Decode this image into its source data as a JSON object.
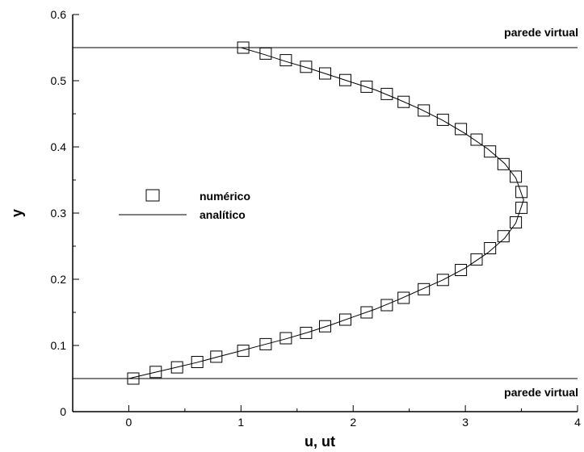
{
  "chart_data": {
    "type": "scatter",
    "xlabel": "u, ut",
    "ylabel": "y",
    "xlim": [
      -0.5,
      4
    ],
    "ylim": [
      0,
      0.6
    ],
    "xticks": [
      0,
      1,
      2,
      3,
      4
    ],
    "xtick_labels": [
      "0",
      "1",
      "2",
      "3",
      "4"
    ],
    "yticks": [
      0,
      0.1,
      0.2,
      0.3,
      0.4,
      0.5,
      0.6
    ],
    "ytick_labels": [
      "0",
      "0.1",
      "0.2",
      "0.3",
      "0.4",
      "0.5",
      "0.6"
    ],
    "grid": false,
    "legend_position": "middle-left",
    "series": [
      {
        "name": "numérico",
        "marker": "square",
        "points": [
          [
            0.04,
            0.05
          ],
          [
            0.24,
            0.06
          ],
          [
            0.43,
            0.067
          ],
          [
            0.61,
            0.075
          ],
          [
            0.78,
            0.083
          ],
          [
            1.02,
            0.092
          ],
          [
            1.22,
            0.102
          ],
          [
            1.4,
            0.111
          ],
          [
            1.58,
            0.119
          ],
          [
            1.75,
            0.129
          ],
          [
            1.93,
            0.139
          ],
          [
            2.12,
            0.15
          ],
          [
            2.3,
            0.161
          ],
          [
            2.45,
            0.172
          ],
          [
            2.63,
            0.185
          ],
          [
            2.8,
            0.199
          ],
          [
            2.96,
            0.214
          ],
          [
            3.1,
            0.23
          ],
          [
            3.22,
            0.247
          ],
          [
            3.34,
            0.265
          ],
          [
            3.45,
            0.286
          ],
          [
            3.5,
            0.308
          ],
          [
            3.5,
            0.332
          ],
          [
            3.45,
            0.355
          ],
          [
            3.34,
            0.374
          ],
          [
            3.22,
            0.393
          ],
          [
            3.1,
            0.411
          ],
          [
            2.96,
            0.427
          ],
          [
            2.8,
            0.441
          ],
          [
            2.63,
            0.455
          ],
          [
            2.45,
            0.468
          ],
          [
            2.3,
            0.48
          ],
          [
            2.12,
            0.491
          ],
          [
            1.93,
            0.501
          ],
          [
            1.75,
            0.511
          ],
          [
            1.58,
            0.521
          ],
          [
            1.4,
            0.531
          ],
          [
            1.22,
            0.541
          ],
          [
            1.02,
            0.55
          ]
        ]
      },
      {
        "name": "analítico",
        "marker": "line",
        "points": [
          [
            0.0,
            0.05
          ],
          [
            0.2,
            0.058
          ],
          [
            0.4,
            0.066
          ],
          [
            0.6,
            0.074
          ],
          [
            0.8,
            0.083
          ],
          [
            1.0,
            0.092
          ],
          [
            1.2,
            0.101
          ],
          [
            1.4,
            0.11
          ],
          [
            1.6,
            0.12
          ],
          [
            1.8,
            0.131
          ],
          [
            2.0,
            0.143
          ],
          [
            2.2,
            0.155
          ],
          [
            2.4,
            0.169
          ],
          [
            2.6,
            0.184
          ],
          [
            2.8,
            0.199
          ],
          [
            3.0,
            0.217
          ],
          [
            3.2,
            0.24
          ],
          [
            3.35,
            0.262
          ],
          [
            3.45,
            0.285
          ],
          [
            3.52,
            0.32
          ],
          [
            3.45,
            0.353
          ],
          [
            3.35,
            0.375
          ],
          [
            3.2,
            0.397
          ],
          [
            3.0,
            0.42
          ],
          [
            2.8,
            0.44
          ],
          [
            2.6,
            0.457
          ],
          [
            2.4,
            0.472
          ],
          [
            2.2,
            0.486
          ],
          [
            2.0,
            0.497
          ],
          [
            1.8,
            0.508
          ],
          [
            1.6,
            0.519
          ],
          [
            1.4,
            0.529
          ],
          [
            1.2,
            0.54
          ],
          [
            1.0,
            0.55
          ]
        ]
      }
    ],
    "reference_lines": [
      {
        "y": 0.55,
        "label": "parede virtual"
      },
      {
        "y": 0.05,
        "label": "parede virtual"
      }
    ]
  }
}
